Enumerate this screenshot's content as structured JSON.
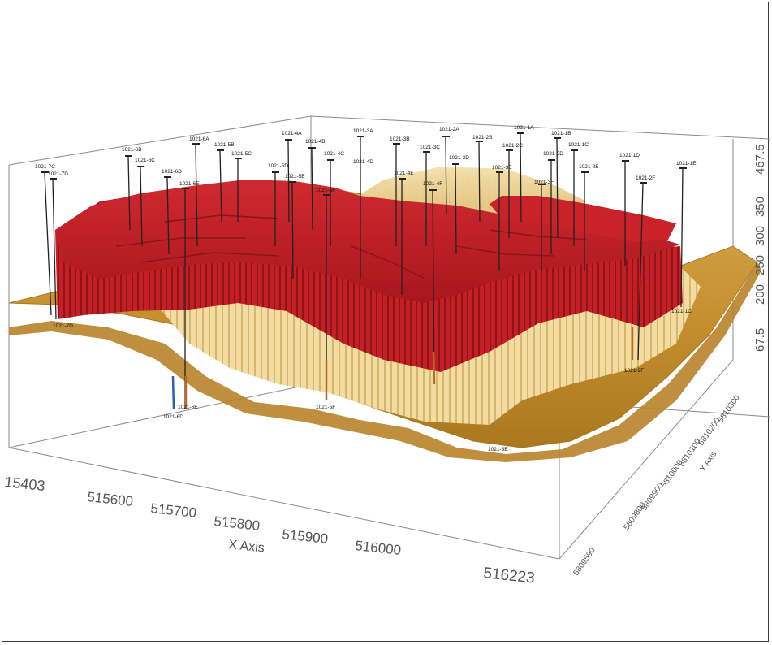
{
  "x_axis": {
    "title": "X Axis",
    "ticks": [
      "15403",
      "515600",
      "515700",
      "515800",
      "515900",
      "516000",
      "516223"
    ]
  },
  "y_axis": {
    "title": "Y Axis",
    "ticks": [
      "5809590",
      "5809800",
      "5809900",
      "5810000",
      "5810100",
      "5810200",
      "5810300"
    ]
  },
  "z_axis": {
    "ticks": [
      "67.5",
      "200",
      "250",
      "300",
      "350",
      "467.5"
    ]
  },
  "wells_top": [
    {
      "id": "1021-7C"
    },
    {
      "id": "1021-7D"
    },
    {
      "id": "1021-6B"
    },
    {
      "id": "1021-6C"
    },
    {
      "id": "1021-6A"
    },
    {
      "id": "1021-6D"
    },
    {
      "id": "1021-6E"
    },
    {
      "id": "1021-5B"
    },
    {
      "id": "1021-5C"
    },
    {
      "id": "1021-5D"
    },
    {
      "id": "1021-5E"
    },
    {
      "id": "1021-4A"
    },
    {
      "id": "1021-4B"
    },
    {
      "id": "1021-4C"
    },
    {
      "id": "1021-4D"
    },
    {
      "id": "1021-5F"
    },
    {
      "id": "1021-3A"
    },
    {
      "id": "1021-3B"
    },
    {
      "id": "1021-4E"
    },
    {
      "id": "1021-3C"
    },
    {
      "id": "1021-4F"
    },
    {
      "id": "1021-3D"
    },
    {
      "id": "1021-2A"
    },
    {
      "id": "1021-2B"
    },
    {
      "id": "1021-3E"
    },
    {
      "id": "1021-2C"
    },
    {
      "id": "1021-1A"
    },
    {
      "id": "1021-3F"
    },
    {
      "id": "1021-1B"
    },
    {
      "id": "1021-2D"
    },
    {
      "id": "1021-1C"
    },
    {
      "id": "1021-2E"
    },
    {
      "id": "1021-1D"
    },
    {
      "id": "1021-2F"
    },
    {
      "id": "1021-1E"
    }
  ],
  "wells_bottom": [
    {
      "id": "1021-7D"
    },
    {
      "id": "1021-6E"
    },
    {
      "id": "1021-6D"
    },
    {
      "id": "1021-5F"
    },
    {
      "id": "1021-3E"
    },
    {
      "id": "1021-2F"
    },
    {
      "id": "1021-1C"
    }
  ],
  "colors": {
    "frame": "#3a3a3a",
    "axis": "#777777",
    "red_top": "#c8202a",
    "red_dark": "#8e1418",
    "tan_light": "#f0d79a",
    "tan_mid": "#d9b46a",
    "gold": "#c99637",
    "gold_dark": "#9a6f22",
    "well": "#222222",
    "well_blue": "#2f5fb3",
    "well_orange": "#b86a2a"
  }
}
